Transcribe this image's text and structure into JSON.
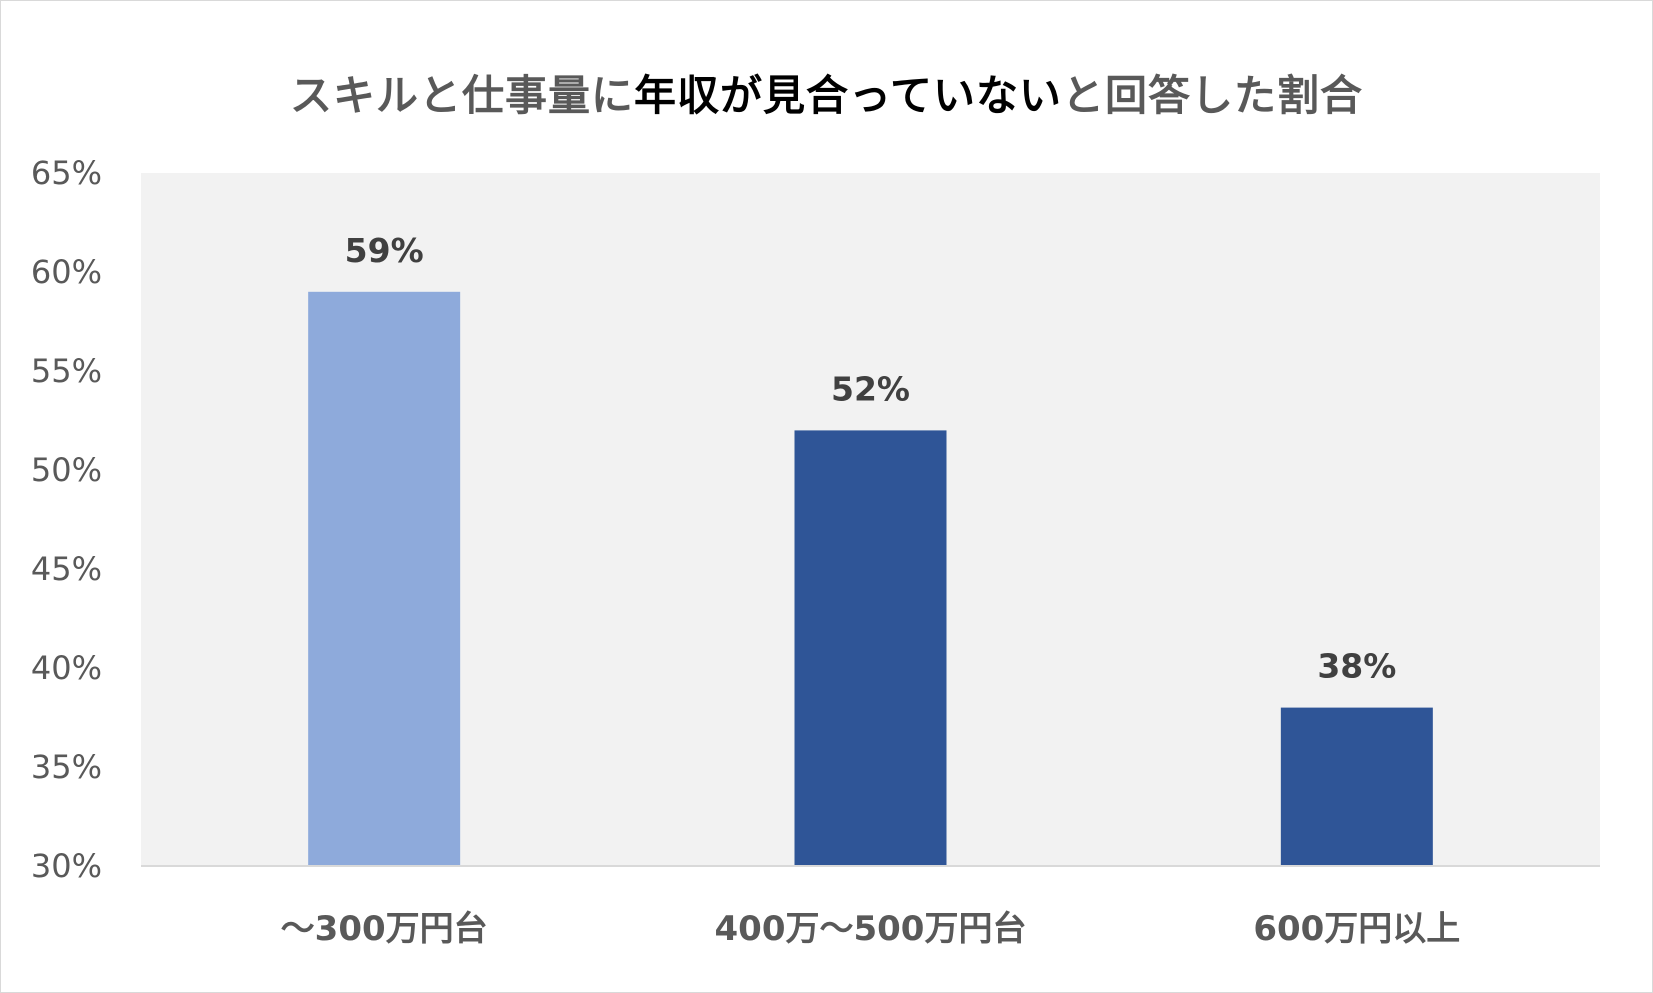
{
  "chart_data": {
    "type": "bar",
    "title_parts": [
      {
        "text": "スキルと仕事量に",
        "emphasis": false
      },
      {
        "text": "年収が見合っていない",
        "emphasis": true
      },
      {
        "text": "と回答した割合",
        "emphasis": false
      }
    ],
    "categories": [
      "～300万円台",
      "400万～500万円台",
      "600万円以上"
    ],
    "values": [
      59,
      52,
      38
    ],
    "data_labels": [
      "59%",
      "52%",
      "38%"
    ],
    "bar_colors": [
      "#8eaadb",
      "#2f5597",
      "#2f5597"
    ],
    "ylim": [
      30,
      65
    ],
    "yticks": [
      30,
      35,
      40,
      45,
      50,
      55,
      60,
      65
    ],
    "ytick_suffix": "%",
    "plot_background": "#f2f2f2",
    "grid": false,
    "legend": "none"
  }
}
